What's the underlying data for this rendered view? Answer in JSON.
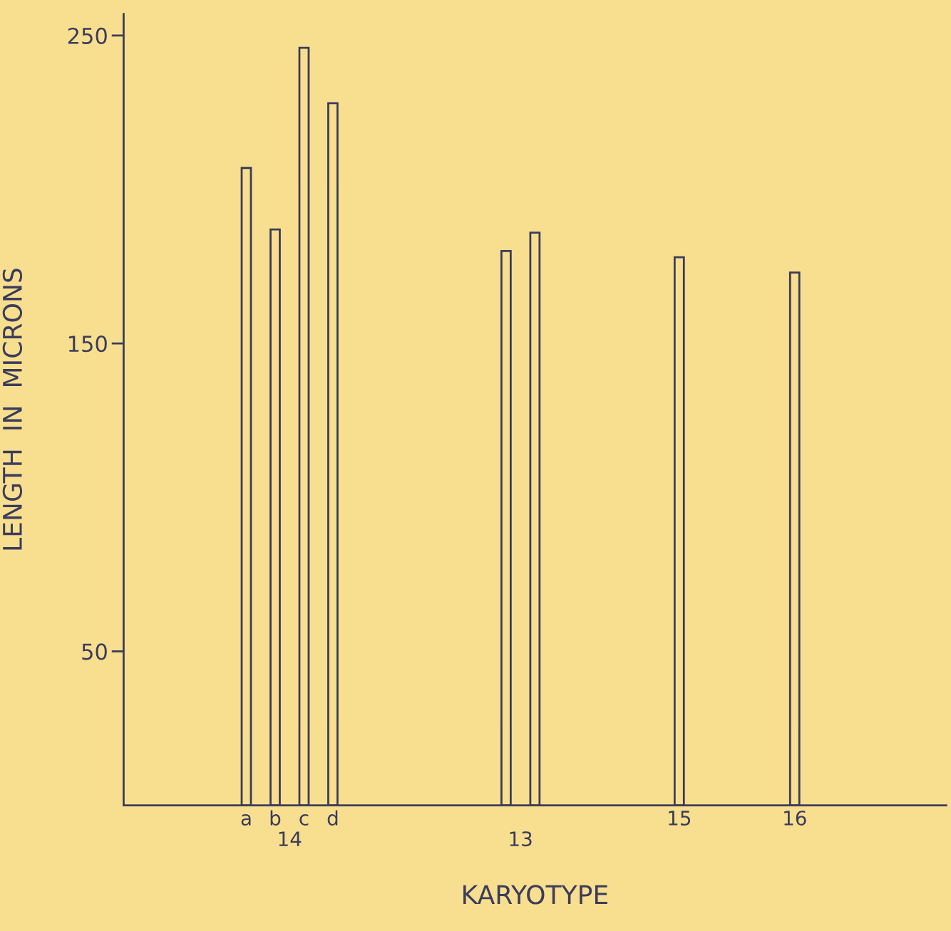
{
  "chart_data": {
    "type": "bar",
    "xlabel": "KARYOTYPE",
    "ylabel": "LENGTH  IN  MICRONS",
    "categories": [
      null,
      null,
      null,
      null,
      null,
      null,
      null,
      null,
      "a",
      null,
      "b",
      "14",
      "c",
      null,
      "d",
      null,
      null,
      null,
      null,
      null,
      null,
      null,
      null,
      null,
      null,
      null,
      null,
      "13",
      null,
      null,
      null,
      null,
      null,
      null,
      null,
      null,
      null,
      null,
      "15",
      null,
      null,
      null,
      null,
      null,
      null,
      null,
      "16",
      null,
      null,
      null,
      null,
      null,
      null,
      null,
      null,
      null,
      null
    ],
    "values": [
      null,
      null,
      null,
      null,
      null,
      null,
      null,
      null,
      207,
      null,
      187,
      null,
      246,
      null,
      228,
      null,
      null,
      null,
      null,
      null,
      null,
      null,
      null,
      null,
      null,
      null,
      180,
      null,
      186,
      null,
      null,
      null,
      null,
      null,
      null,
      null,
      null,
      null,
      178,
      null,
      null,
      null,
      null,
      null,
      null,
      null,
      173,
      null,
      null,
      null,
      null,
      null,
      null,
      null,
      null,
      null,
      null
    ],
    "color": "#3c3c5a",
    "ylim": [
      0,
      257
    ],
    "yticks": [
      50,
      150,
      250
    ],
    "grid": false
  }
}
